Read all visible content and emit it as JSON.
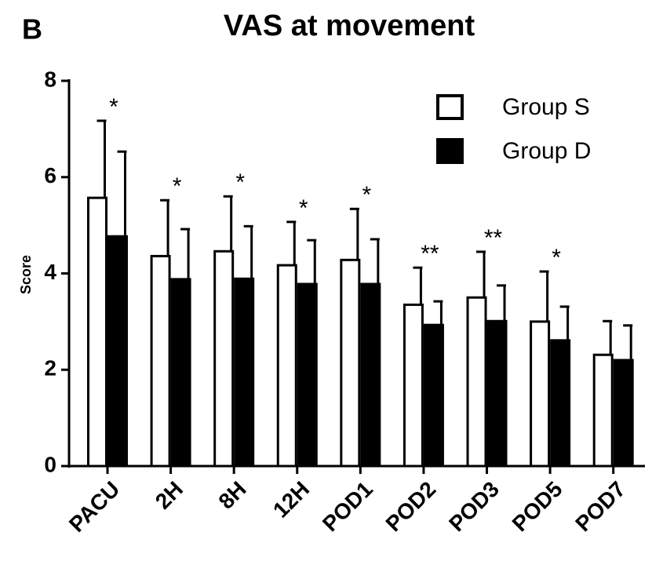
{
  "chart_data": {
    "type": "bar",
    "panel_label": "B",
    "title": "VAS at movement",
    "y_label": "Score",
    "categories": [
      "PACU",
      "2H",
      "8H",
      "12H",
      "POD1",
      "POD2",
      "POD3",
      "POD5",
      "POD7"
    ],
    "series": [
      {
        "name": "Group S",
        "color": "#ffffff",
        "values": [
          5.57,
          4.36,
          4.46,
          4.17,
          4.28,
          3.35,
          3.5,
          3.0,
          2.31
        ],
        "errors": [
          1.6,
          1.16,
          1.14,
          0.9,
          1.06,
          0.77,
          0.95,
          1.04,
          0.7
        ]
      },
      {
        "name": "Group D",
        "color": "#000000",
        "values": [
          4.77,
          3.88,
          3.89,
          3.78,
          3.78,
          2.93,
          3.01,
          2.61,
          2.2
        ],
        "errors": [
          1.76,
          1.04,
          1.09,
          0.91,
          0.93,
          0.49,
          0.74,
          0.7,
          0.72
        ]
      }
    ],
    "annotations": [
      "*",
      "*",
      "*",
      "*",
      "*",
      "**",
      "**",
      "*",
      null
    ],
    "ylim": [
      0,
      8
    ],
    "yticks": [
      0,
      2,
      4,
      6,
      8
    ],
    "grid": false,
    "legend": "upper right"
  }
}
